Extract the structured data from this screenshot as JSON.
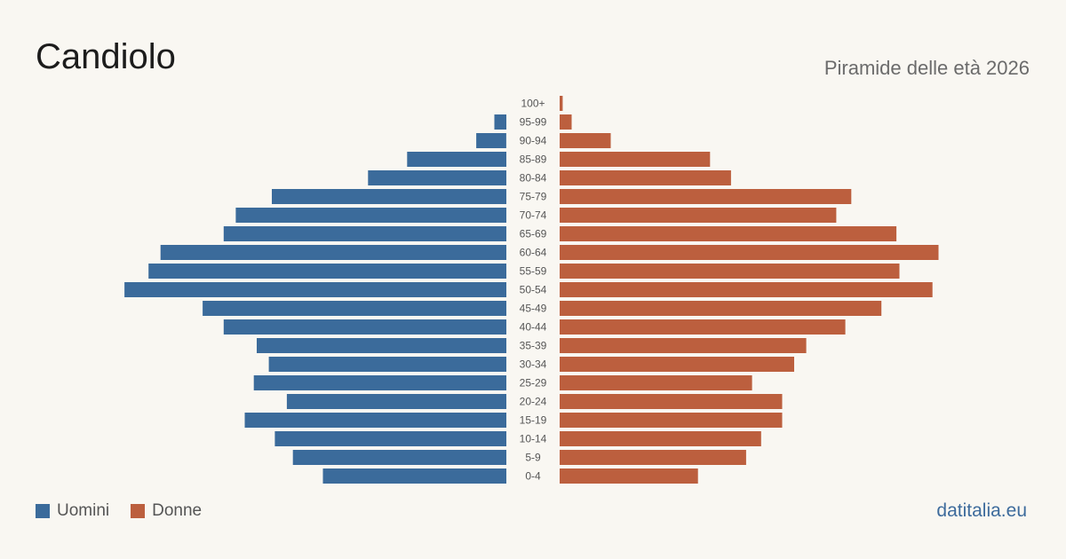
{
  "header": {
    "title": "Candiolo",
    "subtitle": "Piramide delle età 2026"
  },
  "legend": {
    "men_label": "Uomini",
    "women_label": "Donne"
  },
  "source": "datitalia.eu",
  "colors": {
    "men": "#3b6b9b",
    "women": "#bc5f3e",
    "background": "#f9f7f2",
    "tick_text": "#555555"
  },
  "chart_data": {
    "type": "bar",
    "orientation": "horizontal-pyramid",
    "title": "Candiolo",
    "subtitle": "Piramide delle età 2026",
    "categories": [
      "100+",
      "95-99",
      "90-94",
      "85-89",
      "80-84",
      "75-79",
      "70-74",
      "65-69",
      "60-64",
      "55-59",
      "50-54",
      "45-49",
      "40-44",
      "35-39",
      "30-34",
      "25-29",
      "20-24",
      "15-19",
      "10-14",
      "5-9",
      "0-4"
    ],
    "series": [
      {
        "name": "Uomini",
        "color": "#3b6b9b",
        "values": [
          0,
          4,
          10,
          33,
          46,
          78,
          90,
          94,
          115,
          119,
          127,
          101,
          94,
          83,
          79,
          84,
          73,
          87,
          77,
          71,
          61
        ]
      },
      {
        "name": "Donne",
        "color": "#bc5f3e",
        "values": [
          1,
          4,
          17,
          50,
          57,
          97,
          92,
          112,
          126,
          113,
          124,
          107,
          95,
          82,
          78,
          64,
          74,
          74,
          67,
          62,
          46
        ]
      }
    ],
    "axes_visible": false,
    "grid": false,
    "legend_position": "bottom-left"
  }
}
